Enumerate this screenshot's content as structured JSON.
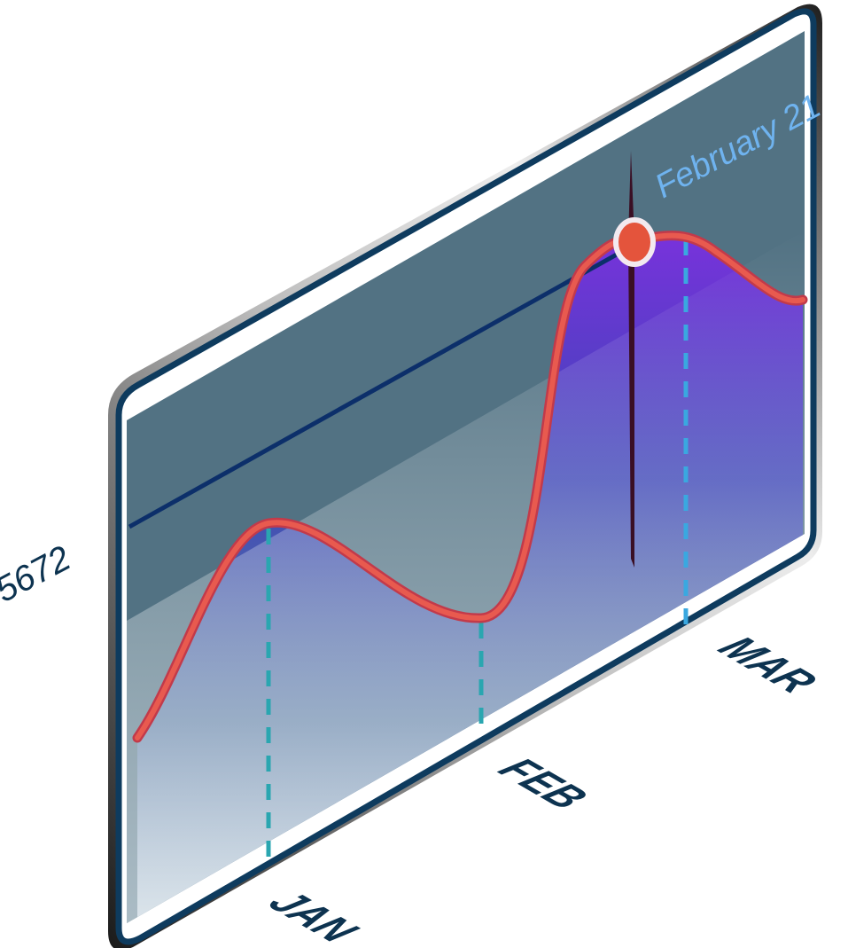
{
  "chart_data": {
    "type": "line",
    "categories": [
      "JAN",
      "FEB",
      "MAR"
    ],
    "y_reference_label": "5672",
    "highlight_label": "February 21",
    "grid": false,
    "legend": "none"
  },
  "colors": {
    "panel_fill": "#527283",
    "frame_dark": "#0e3b5e",
    "line": "#e85a4f",
    "line_shadow": "#c23a4a",
    "area_top": "#6a2fd6",
    "guide": "#2aa6b0",
    "guide_mar": "#3aa8e0",
    "ref_line": "#0c2f6a",
    "marker": "#e4543c",
    "label_dark": "#0d3350",
    "label_highlight": "#6fb3ef"
  }
}
